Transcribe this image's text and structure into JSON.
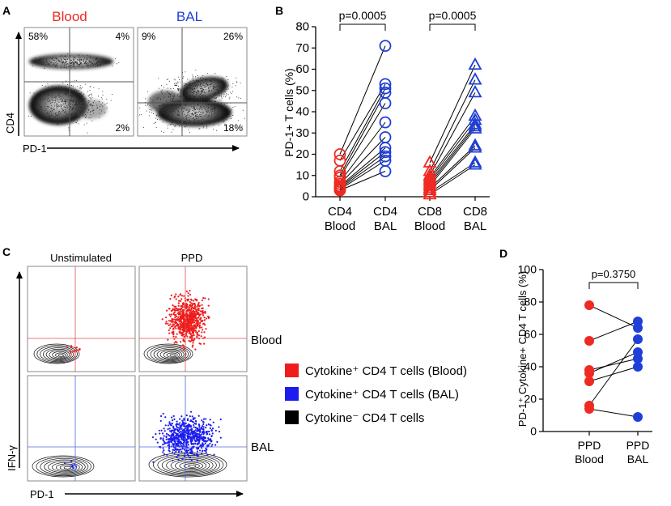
{
  "panels": {
    "a": {
      "letter": "A",
      "col_labels": [
        "Blood",
        "BAL"
      ],
      "ylabel": "CD4",
      "xlabel": "PD-1",
      "quadrants": [
        {
          "tl": "58%",
          "tr": "4%",
          "br": "2%"
        },
        {
          "tl": "9%",
          "tr": "26%",
          "br": "18%"
        }
      ]
    },
    "b": {
      "letter": "B"
    },
    "c": {
      "letter": "C",
      "col_labels": [
        "Unstimulated",
        "PPD"
      ],
      "row_labels": [
        "Blood",
        "BAL"
      ],
      "ylabel": "IFN-γ",
      "xlabel": "PD-1",
      "legend": [
        {
          "label": "Cytokine⁺ CD4 T cells (Blood)",
          "color": "#ee1c1c"
        },
        {
          "label": "Cytokine⁺ CD4 T cells (BAL)",
          "color": "#1c1cee"
        },
        {
          "label": "Cytokine⁻ CD4 T cells",
          "color": "#000000"
        }
      ]
    },
    "d": {
      "letter": "D"
    }
  },
  "colors": {
    "blood": "#ee2a22",
    "bal": "#1f3fd8",
    "blood_dot": "#ee1c1c",
    "bal_dot": "#1c1cee"
  },
  "chart_data": [
    {
      "id": "B",
      "type": "scatter",
      "ylabel": "PD-1+ T cells (%)",
      "ylim": [
        0,
        80
      ],
      "yticks": [
        0,
        10,
        20,
        30,
        40,
        50,
        60,
        70,
        80
      ],
      "categories": [
        "CD4\nBlood",
        "CD4\nBAL",
        "CD8\nBlood",
        "CD8\nBAL"
      ],
      "comparisons": [
        {
          "from": 0,
          "to": 1,
          "label": "p=0.0005"
        },
        {
          "from": 2,
          "to": 3,
          "label": "p=0.0005"
        }
      ],
      "series": [
        {
          "name": "CD4",
          "marker": "circle",
          "pairs": [
            [
              20,
              71
            ],
            [
              17,
              53
            ],
            [
              12,
              51
            ],
            [
              10,
              49
            ],
            [
              9,
              44
            ],
            [
              7,
              35
            ],
            [
              6,
              28
            ],
            [
              5,
              23
            ],
            [
              4.5,
              21
            ],
            [
              4,
              19
            ],
            [
              3.5,
              17
            ],
            [
              3,
              12
            ]
          ]
        },
        {
          "name": "CD8",
          "marker": "triangle",
          "pairs": [
            [
              16,
              62
            ],
            [
              12,
              55
            ],
            [
              10,
              49
            ],
            [
              9,
              38
            ],
            [
              8,
              36
            ],
            [
              7,
              34
            ],
            [
              6,
              33
            ],
            [
              5,
              32
            ],
            [
              4,
              24
            ],
            [
              3,
              23
            ],
            [
              2,
              16
            ],
            [
              1,
              15
            ]
          ]
        }
      ]
    },
    {
      "id": "D",
      "type": "scatter",
      "ylabel": "PD-1⁺ Cytokine+ CD4 T cells (%)",
      "ylim": [
        0,
        100
      ],
      "yticks": [
        0,
        20,
        40,
        60,
        80,
        100
      ],
      "categories": [
        "PPD\nBlood",
        "PPD\nBAL"
      ],
      "comparisons": [
        {
          "from": 0,
          "to": 1,
          "label": "p=0.3750"
        }
      ],
      "pairs": [
        [
          78,
          64
        ],
        [
          56,
          68
        ],
        [
          38,
          45
        ],
        [
          36,
          49
        ],
        [
          31,
          40
        ],
        [
          16,
          57
        ],
        [
          14,
          9
        ]
      ]
    }
  ]
}
